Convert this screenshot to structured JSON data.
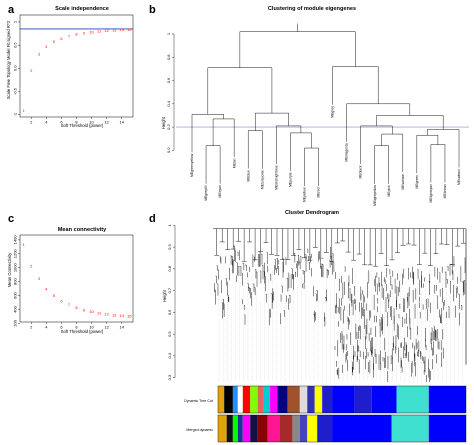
{
  "chart_data": [
    {
      "panel": "a",
      "type": "scatter",
      "title": "Scale independence",
      "xlabel": "Soft Threshold (power)",
      "ylabel": "Scale Free Topology Model Fit,signed R^2",
      "xlim": [
        0.5,
        15.5
      ],
      "ylim": [
        -1.05,
        1.15
      ],
      "xticks": [
        2,
        4,
        6,
        8,
        10,
        12,
        14
      ],
      "yticks": [
        -1.0,
        -0.5,
        0.0,
        0.5,
        1.0
      ],
      "hline": 0.85,
      "hline_color": "#1f3fbf",
      "point_color": "#ff0000",
      "x": [
        1,
        2,
        3,
        4,
        5,
        6,
        7,
        8,
        9,
        10,
        11,
        12,
        13,
        14,
        15
      ],
      "y": [
        -0.92,
        -0.05,
        0.3,
        0.46,
        0.57,
        0.64,
        0.69,
        0.73,
        0.76,
        0.78,
        0.8,
        0.81,
        0.82,
        0.83,
        0.83
      ]
    },
    {
      "panel": "b",
      "type": "dendrogram",
      "title": "Clustering of module eigengenes",
      "ylabel": "Height",
      "ylim": [
        -0.1,
        1.12
      ],
      "yticks": [
        0.0,
        0.2,
        0.4,
        0.6,
        0.8,
        1.0
      ],
      "cut_height": 0.2,
      "cut_color": "#7f8ccc",
      "leaves": [
        "MEgreenyellow",
        "MEgrey60",
        "MEcyan",
        "MEtan",
        "MEblue",
        "MEturquoise",
        "MEmidnightblue",
        "MEpurple",
        "MEyellow",
        "MEred",
        "MEgrey",
        "MEmagenta",
        "MEblack",
        "MElightyellow",
        "MEpink",
        "MEsalmon",
        "MEgreen",
        "MElightcyan",
        "MEbrown",
        "MEsalmon"
      ],
      "nodes": [
        {
          "id": "n1",
          "l": 1,
          "r": 2,
          "h": 0.04
        },
        {
          "id": "n2",
          "l": "n1",
          "r": 3,
          "h": 0.27
        },
        {
          "id": "n3",
          "l": 0,
          "r": "n2",
          "h": 0.31
        },
        {
          "id": "n4",
          "l": 4,
          "r": 5,
          "h": 0.17
        },
        {
          "id": "n5",
          "l": 8,
          "r": 9,
          "h": 0.02
        },
        {
          "id": "n6",
          "l": 7,
          "r": "n5",
          "h": 0.15
        },
        {
          "id": "n7",
          "l": 6,
          "r": "n6",
          "h": 0.21
        },
        {
          "id": "n8",
          "l": "n4",
          "r": "n7",
          "h": 0.32
        },
        {
          "id": "n9",
          "l": "n3",
          "r": "n8",
          "h": 0.71
        },
        {
          "id": "n10",
          "l": 13,
          "r": 14,
          "h": 0.04
        },
        {
          "id": "n11",
          "l": "n10",
          "r": 15,
          "h": 0.14
        },
        {
          "id": "n12",
          "l": 12,
          "r": "n11",
          "h": 0.21
        },
        {
          "id": "n13",
          "l": 17,
          "r": 18,
          "h": 0.05
        },
        {
          "id": "n14",
          "l": 16,
          "r": "n13",
          "h": 0.13
        },
        {
          "id": "n15",
          "l": "n14",
          "r": 19,
          "h": 0.18
        },
        {
          "id": "n16",
          "l": "n12",
          "r": "n15",
          "h": 0.3
        },
        {
          "id": "n17",
          "l": 11,
          "r": "n16",
          "h": 0.4
        },
        {
          "id": "n18",
          "l": 10,
          "r": "n17",
          "h": 0.72
        },
        {
          "id": "n19",
          "l": "n9",
          "r": "n18",
          "h": 1.02
        }
      ]
    },
    {
      "panel": "c",
      "type": "scatter",
      "title": "Mean connectivity",
      "xlabel": "Soft Threshold (power)",
      "ylabel": "Mean Connectivity",
      "xlim": [
        0.5,
        15.5
      ],
      "ylim": [
        220,
        1470
      ],
      "xticks": [
        2,
        4,
        6,
        8,
        10,
        12,
        14
      ],
      "yticks": [
        200,
        400,
        600,
        800,
        1000,
        1200,
        1400
      ],
      "point_color": "#ff0000",
      "x": [
        1,
        2,
        3,
        4,
        5,
        6,
        7,
        8,
        9,
        10,
        11,
        12,
        13,
        14,
        15
      ],
      "y": [
        1330,
        1020,
        840,
        690,
        595,
        520,
        465,
        425,
        390,
        365,
        345,
        330,
        318,
        308,
        300
      ]
    },
    {
      "panel": "d",
      "type": "dendrogram",
      "title": "Cluster Dendrogram",
      "ylabel": "Height",
      "ylim": [
        0.28,
        1.02
      ],
      "yticks": [
        0.3,
        0.4,
        0.5,
        0.6,
        0.7,
        0.8,
        0.9,
        1.0
      ],
      "tracks": [
        {
          "label": "Dynamic Tree Cut",
          "segments": [
            [
              0.0,
              0.025,
              "#e3a10d"
            ],
            [
              0.025,
              0.06,
              "#000000"
            ],
            [
              0.06,
              0.08,
              "#1e90ff"
            ],
            [
              0.08,
              0.1,
              "#ffffff"
            ],
            [
              0.1,
              0.13,
              "#ff0000"
            ],
            [
              0.13,
              0.16,
              "#7fff00"
            ],
            [
              0.16,
              0.185,
              "#e06666"
            ],
            [
              0.185,
              0.21,
              "#00ced1"
            ],
            [
              0.21,
              0.24,
              "#ff00ff"
            ],
            [
              0.24,
              0.28,
              "#000080"
            ],
            [
              0.28,
              0.33,
              "#a0522d"
            ],
            [
              0.33,
              0.36,
              "#dddddd"
            ],
            [
              0.36,
              0.39,
              "#3333aa"
            ],
            [
              0.39,
              0.42,
              "#ffff00"
            ],
            [
              0.42,
              0.46,
              "#1e1ecc"
            ],
            [
              0.46,
              0.55,
              "#0000ff"
            ],
            [
              0.55,
              0.62,
              "#1e1ecc"
            ],
            [
              0.62,
              0.72,
              "#0000ff"
            ],
            [
              0.72,
              0.85,
              "#40e0d0"
            ],
            [
              0.85,
              1.0,
              "#0000ff"
            ]
          ]
        },
        {
          "label": "Merged dynamic",
          "segments": [
            [
              0.0,
              0.035,
              "#e3a10d"
            ],
            [
              0.035,
              0.06,
              "#111111"
            ],
            [
              0.06,
              0.08,
              "#00ff00"
            ],
            [
              0.08,
              0.1,
              "#1e3399"
            ],
            [
              0.1,
              0.13,
              "#ff00ff"
            ],
            [
              0.13,
              0.16,
              "#111144"
            ],
            [
              0.16,
              0.2,
              "#8b0000"
            ],
            [
              0.2,
              0.25,
              "#ff1493"
            ],
            [
              0.25,
              0.3,
              "#a52a2a"
            ],
            [
              0.3,
              0.33,
              "#888888"
            ],
            [
              0.33,
              0.36,
              "#4444bb"
            ],
            [
              0.36,
              0.4,
              "#ffff00"
            ],
            [
              0.4,
              0.46,
              "#1e1ecc"
            ],
            [
              0.46,
              0.7,
              "#0000ff"
            ],
            [
              0.7,
              0.85,
              "#40e0d0"
            ],
            [
              0.85,
              1.0,
              "#0000ff"
            ]
          ]
        }
      ]
    }
  ]
}
